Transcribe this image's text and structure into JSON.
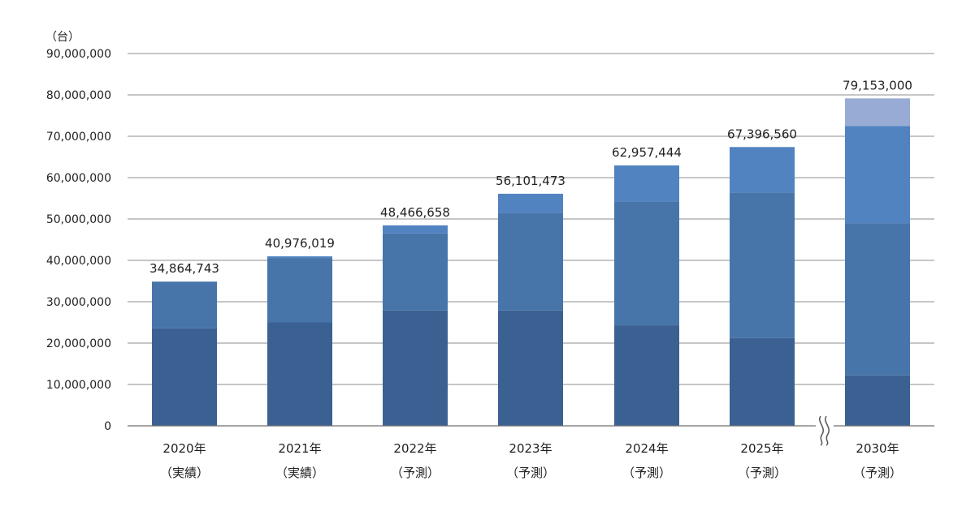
{
  "chart_data": {
    "type": "bar",
    "stacked": true,
    "unit_label": "（台）",
    "ylim": [
      0,
      90000000
    ],
    "ytick_labels": [
      "0",
      "10,000,000",
      "20,000,000",
      "30,000,000",
      "40,000,000",
      "50,000,000",
      "60,000,000",
      "70,000,000",
      "80,000,000",
      "90,000,000"
    ],
    "ytick_values": [
      0,
      10000000,
      20000000,
      30000000,
      40000000,
      50000000,
      60000000,
      70000000,
      80000000,
      90000000
    ],
    "grid": true,
    "categories": [
      {
        "year": "2020年",
        "status": "（実績）"
      },
      {
        "year": "2021年",
        "status": "（実績）"
      },
      {
        "year": "2022年",
        "status": "（予測）"
      },
      {
        "year": "2023年",
        "status": "（予測）"
      },
      {
        "year": "2024年",
        "status": "（予測）"
      },
      {
        "year": "2025年",
        "status": "（予測）"
      },
      {
        "year": "2030年",
        "status": "（予測）"
      }
    ],
    "series": [
      {
        "color": "#3b6193",
        "values": [
          23600000,
          25000000,
          27900000,
          27900000,
          24300000,
          21200000,
          12200000
        ]
      },
      {
        "color": "#4775aa",
        "values": [
          11264743,
          15576019,
          18600000,
          23600000,
          29900000,
          35200000,
          36800000
        ]
      },
      {
        "color": "#5183c1",
        "values": [
          0,
          400000,
          1966658,
          4601473,
          8757444,
          10996560,
          23500000
        ]
      },
      {
        "color": "#97abd4",
        "values": [
          0,
          0,
          0,
          0,
          0,
          0,
          6653000
        ]
      }
    ],
    "totals": [
      34864743,
      40976019,
      48466658,
      56101473,
      62957444,
      67396560,
      79153000
    ],
    "total_labels": [
      "34,864,743",
      "40,976,019",
      "48,466,658",
      "56,101,473",
      "62,957,444",
      "67,396,560",
      "79,153,000"
    ],
    "axis_break_before_last": true
  }
}
